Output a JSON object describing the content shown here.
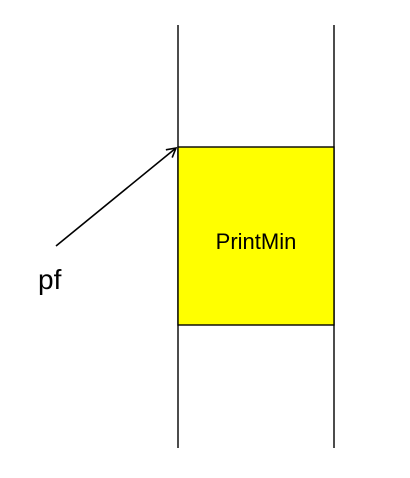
{
  "diagram": {
    "block": {
      "label": "PrintMin",
      "fill_color": "#ffff00",
      "stroke_color": "#000000"
    },
    "pointer": {
      "label": "pf"
    },
    "line_color": "#000000"
  }
}
